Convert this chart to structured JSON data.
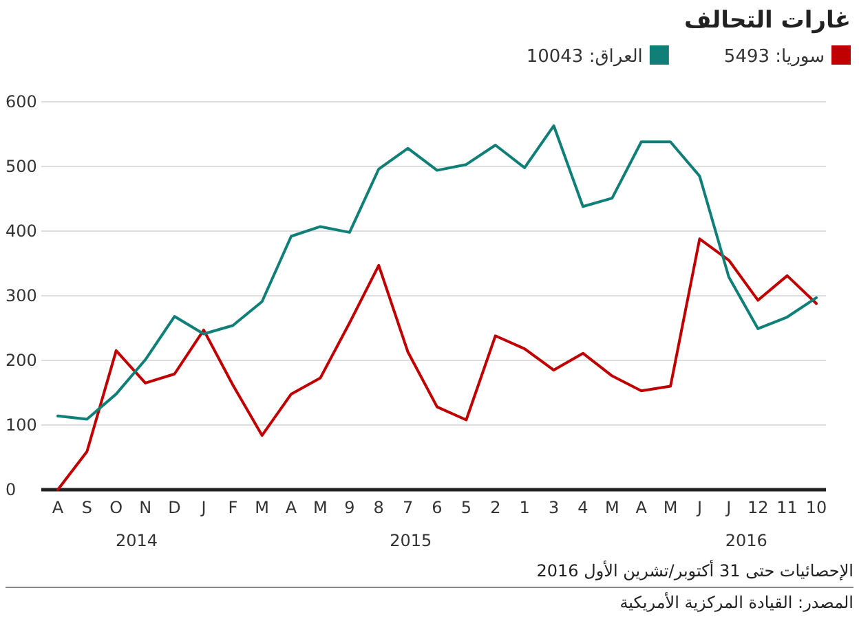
{
  "chart_data": {
    "type": "line",
    "title": "غارات التحالف",
    "categories": [
      "A",
      "S",
      "O",
      "N",
      "D",
      "J",
      "F",
      "M",
      "A",
      "M",
      "9",
      "8",
      "7",
      "6",
      "5",
      "2",
      "1",
      "3",
      "4",
      "M",
      "A",
      "M",
      "J",
      "J",
      "12",
      "11",
      "10"
    ],
    "series": [
      {
        "name": "سوريا: 5493",
        "color": "#c00000",
        "values": [
          0,
          59,
          215,
          165,
          179,
          247,
          162,
          84,
          148,
          173,
          258,
          347,
          213,
          128,
          108,
          238,
          218,
          185,
          211,
          176,
          153,
          160,
          388,
          355,
          293,
          331,
          288
        ]
      },
      {
        "name": "العراق: 10043",
        "color": "#0f7f78",
        "values": [
          114,
          109,
          148,
          201,
          268,
          241,
          254,
          291,
          392,
          407,
          398,
          496,
          528,
          494,
          503,
          533,
          498,
          563,
          438,
          451,
          538,
          538,
          485,
          329,
          249,
          267,
          297
        ]
      }
    ],
    "ylim": [
      0,
      600
    ],
    "yticks": [
      0,
      100,
      200,
      300,
      400,
      500,
      600
    ],
    "grid": "y",
    "legend": "top",
    "annotations": [
      "2014",
      "2015",
      "2016",
      "الإحصائيات حتى 31 أكتوبر/تشرين الأول 2016",
      "المصدر: القيادة المركزية الأمريكية"
    ]
  }
}
